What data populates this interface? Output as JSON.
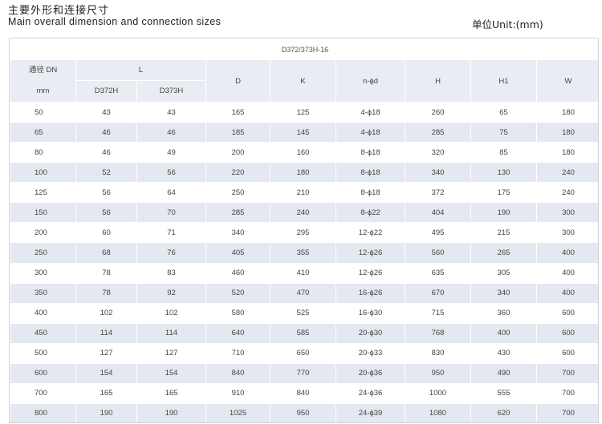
{
  "header": {
    "title_cn": "主要外形和连接尺寸",
    "title_en": "Main overall dimension and connection sizes",
    "unit": "单位Unit:(mm)"
  },
  "table": {
    "caption": "D372/373H-16",
    "dn_header_cn": "通径 DN",
    "dn_header_unit": "mm",
    "l_header": "L",
    "l_sub": [
      "D372H",
      "D373H"
    ],
    "col_headers": [
      "D",
      "K",
      "n-ϕd",
      "H",
      "H1",
      "W"
    ],
    "rows": [
      [
        "50",
        "43",
        "43",
        "165",
        "125",
        "4-ϕ18",
        "260",
        "65",
        "180"
      ],
      [
        "65",
        "46",
        "46",
        "185",
        "145",
        "4-ϕ18",
        "285",
        "75",
        "180"
      ],
      [
        "80",
        "46",
        "49",
        "200",
        "160",
        "8-ϕ18",
        "320",
        "85",
        "180"
      ],
      [
        "100",
        "52",
        "56",
        "220",
        "180",
        "8-ϕ18",
        "340",
        "130",
        "240"
      ],
      [
        "125",
        "56",
        "64",
        "250",
        "210",
        "8-ϕ18",
        "372",
        "175",
        "240"
      ],
      [
        "150",
        "56",
        "70",
        "285",
        "240",
        "8-ϕ22",
        "404",
        "190",
        "300"
      ],
      [
        "200",
        "60",
        "71",
        "340",
        "295",
        "12-ϕ22",
        "495",
        "215",
        "300"
      ],
      [
        "250",
        "68",
        "76",
        "405",
        "355",
        "12-ϕ26",
        "560",
        "265",
        "400"
      ],
      [
        "300",
        "78",
        "83",
        "460",
        "410",
        "12-ϕ26",
        "635",
        "305",
        "400"
      ],
      [
        "350",
        "78",
        "92",
        "520",
        "470",
        "16-ϕ26",
        "670",
        "340",
        "400"
      ],
      [
        "400",
        "102",
        "102",
        "580",
        "525",
        "16-ϕ30",
        "715",
        "360",
        "600"
      ],
      [
        "450",
        "114",
        "114",
        "640",
        "585",
        "20-ϕ30",
        "768",
        "400",
        "600"
      ],
      [
        "500",
        "127",
        "127",
        "710",
        "650",
        "20-ϕ33",
        "830",
        "430",
        "600"
      ],
      [
        "600",
        "154",
        "154",
        "840",
        "770",
        "20-ϕ36",
        "950",
        "490",
        "700"
      ],
      [
        "700",
        "165",
        "165",
        "910",
        "840",
        "24-ϕ36",
        "1000",
        "555",
        "700"
      ],
      [
        "800",
        "190",
        "190",
        "1025",
        "950",
        "24-ϕ39",
        "1080",
        "620",
        "700"
      ]
    ]
  }
}
